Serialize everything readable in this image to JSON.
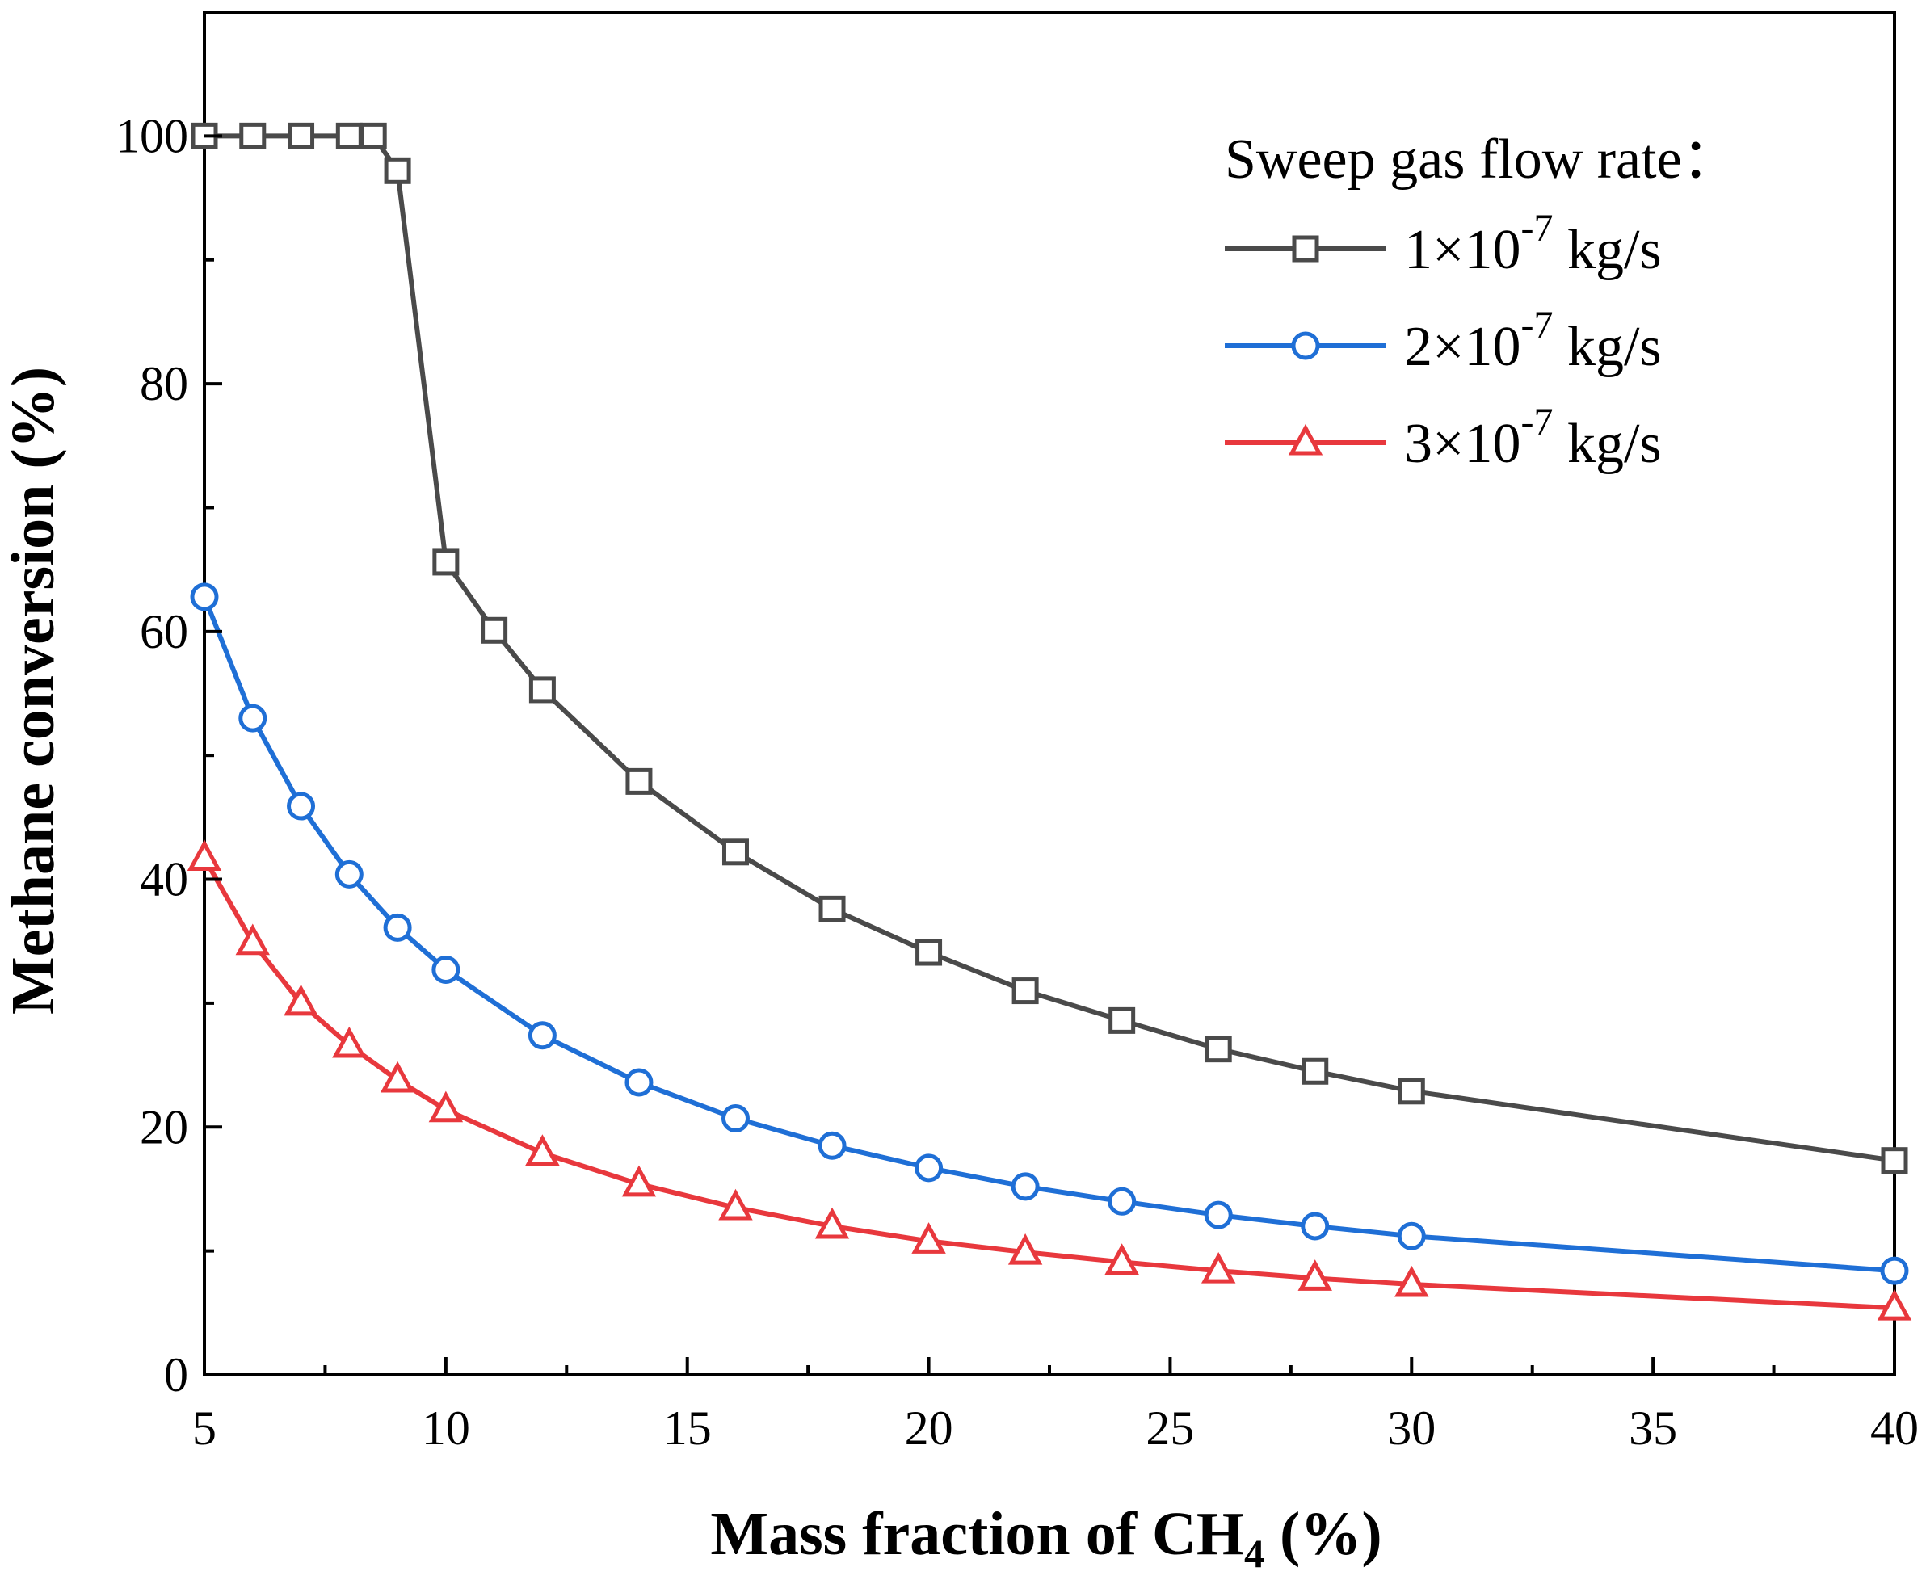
{
  "chart_data": {
    "type": "line",
    "xlabel_main": "Mass fraction of CH",
    "xlabel_sub": "4",
    "xlabel_tail": " (%)",
    "ylabel": "Methane conversion (%)",
    "xlim": [
      5,
      40
    ],
    "ylim": [
      0,
      110
    ],
    "xticks": [
      5,
      10,
      15,
      20,
      25,
      30,
      35,
      40
    ],
    "yticks": [
      0,
      20,
      40,
      60,
      80,
      100
    ],
    "grid": false,
    "legend": {
      "title": "Sweep gas flow rate：",
      "placement": "top-right"
    },
    "series": [
      {
        "name_prefix": "1×10",
        "name_exp": "-7",
        "name_unit": " kg/s",
        "color": "#4a4a4a",
        "marker": "square",
        "x": [
          5,
          6,
          7,
          8,
          8.5,
          9,
          10,
          11,
          12,
          14,
          16,
          18,
          20,
          22,
          24,
          26,
          28,
          30,
          40
        ],
        "values": [
          100,
          100,
          100,
          100,
          100,
          97.2,
          65.6,
          60.1,
          55.3,
          47.9,
          42.2,
          37.6,
          34.1,
          31.0,
          28.6,
          26.3,
          24.5,
          22.9,
          17.3
        ]
      },
      {
        "name_prefix": "2×10",
        "name_exp": "-7",
        "name_unit": " kg/s",
        "color": "#1f6fd6",
        "marker": "circle",
        "x": [
          5,
          6,
          7,
          8,
          9,
          10,
          12,
          14,
          16,
          18,
          20,
          22,
          24,
          26,
          28,
          30,
          40
        ],
        "values": [
          62.8,
          53.0,
          45.9,
          40.4,
          36.1,
          32.7,
          27.4,
          23.6,
          20.7,
          18.5,
          16.7,
          15.2,
          14.0,
          12.9,
          12.0,
          11.2,
          8.4
        ]
      },
      {
        "name_prefix": "3×10",
        "name_exp": "-7",
        "name_unit": " kg/s",
        "color": "#e8383d",
        "marker": "triangle",
        "x": [
          5,
          6,
          7,
          8,
          9,
          10,
          12,
          14,
          16,
          18,
          20,
          22,
          24,
          26,
          28,
          30,
          40
        ],
        "values": [
          41.7,
          34.9,
          30.0,
          26.6,
          23.8,
          21.4,
          17.9,
          15.4,
          13.5,
          12.0,
          10.8,
          9.9,
          9.1,
          8.4,
          7.8,
          7.3,
          5.4
        ]
      }
    ]
  }
}
